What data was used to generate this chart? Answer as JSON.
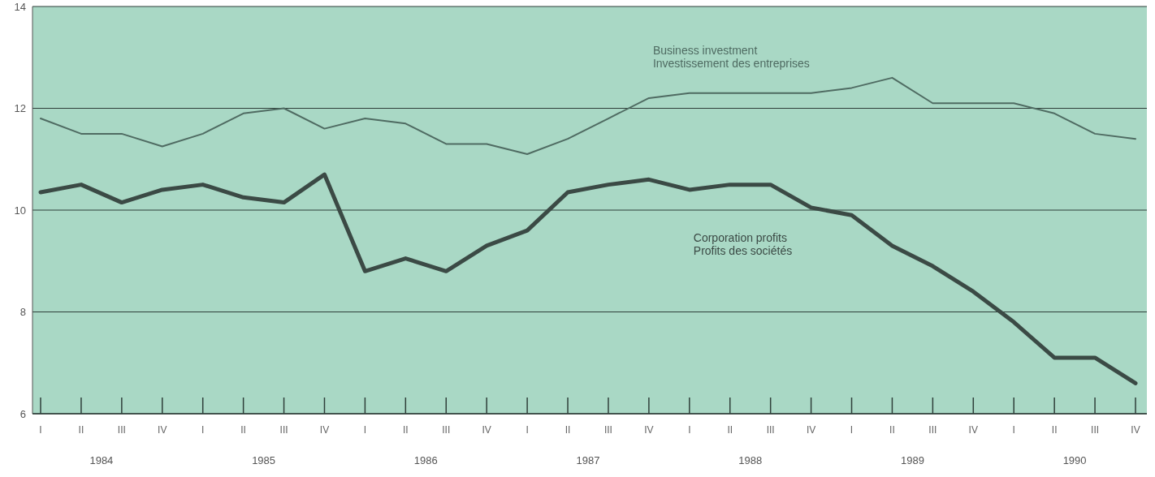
{
  "chart_data": {
    "type": "line",
    "categories": [
      "I",
      "II",
      "III",
      "IV",
      "I",
      "II",
      "III",
      "IV",
      "I",
      "II",
      "III",
      "IV",
      "I",
      "II",
      "III",
      "IV",
      "I",
      "II",
      "III",
      "IV",
      "I",
      "II",
      "III",
      "IV",
      "I",
      "II",
      "III",
      "IV"
    ],
    "series": [
      {
        "name": "Business investment\nInvestissement des entreprises",
        "color": "#4f6b62",
        "values": [
          11.8,
          11.5,
          11.5,
          11.25,
          11.5,
          11.9,
          12.0,
          11.6,
          11.8,
          11.7,
          11.3,
          11.3,
          11.1,
          11.4,
          11.8,
          12.2,
          12.3,
          12.3,
          12.3,
          12.3,
          12.4,
          12.6,
          12.1,
          12.1,
          12.1,
          11.9,
          11.5,
          11.4
        ]
      },
      {
        "name": "Corporation profits\nProfits des sociétés",
        "color": "#3b4a45",
        "values": [
          10.35,
          10.5,
          10.15,
          10.4,
          10.5,
          10.25,
          10.15,
          10.7,
          8.8,
          9.05,
          8.8,
          9.3,
          9.6,
          10.35,
          10.5,
          10.6,
          10.4,
          10.5,
          10.5,
          10.05,
          9.9,
          9.3,
          8.9,
          8.4,
          7.8,
          7.1,
          7.1,
          6.6
        ]
      }
    ],
    "annotations": [
      "1984",
      "1985",
      "1986",
      "1987",
      "1988",
      "1989",
      "1990"
    ],
    "ylim": [
      6,
      14
    ],
    "yticks": [
      6,
      8,
      10,
      12,
      14
    ],
    "grid": "y"
  }
}
